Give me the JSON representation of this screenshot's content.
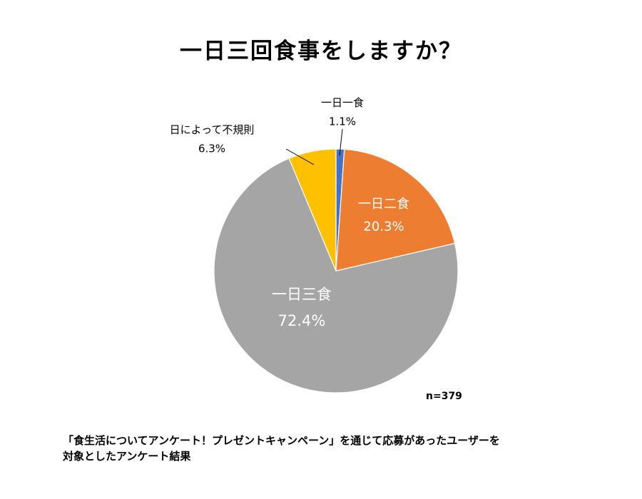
{
  "title": "一日三回食事をしますか？",
  "chart_data": {
    "type": "pie",
    "title": "一日三回食事をしますか？",
    "start_angle": "12 o'clock",
    "direction": "clockwise",
    "slices": [
      {
        "name": "一日一食",
        "value": 1.1,
        "label": "1.1%",
        "color": "#4472c4",
        "label_position": "outside"
      },
      {
        "name": "一日二食",
        "value": 20.3,
        "label": "20.3%",
        "color": "#ed7d31",
        "label_position": "inside"
      },
      {
        "name": "一日三食",
        "value": 72.4,
        "label": "72.4%",
        "color": "#a5a5a5",
        "label_position": "inside"
      },
      {
        "name": "日によって不規則",
        "value": 6.3,
        "label": "6.3%",
        "color": "#ffc000",
        "label_position": "outside"
      }
    ],
    "unit": "%"
  },
  "sample_size": "n=379",
  "note_lines": [
    "「食生活についてアンケート！プレゼントキャンペーン」を通じて応募があったユーザーを",
    "対象としたアンケート結果"
  ]
}
